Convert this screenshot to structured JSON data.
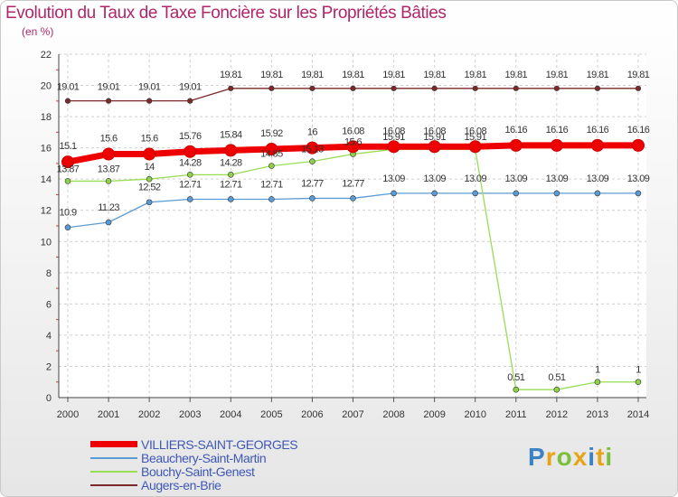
{
  "title": "Evolution du Taux de Taxe Foncière sur les Propriétés Bâties",
  "unit": "(en %)",
  "brand": "Proxiti",
  "chart_data": {
    "type": "line",
    "title": "Evolution du Taux de Taxe Foncière sur les Propriétés Bâties",
    "ylabel": "(en %)",
    "xlabel": "",
    "ylim": [
      0,
      22
    ],
    "yticks": [
      0,
      2,
      4,
      6,
      8,
      10,
      12,
      14,
      16,
      18,
      20,
      22
    ],
    "grid": true,
    "legend_position": "bottom-left",
    "categories": [
      "2000",
      "2001",
      "2002",
      "2003",
      "2004",
      "2005",
      "2006",
      "2007",
      "2008",
      "2009",
      "2010",
      "2011",
      "2012",
      "2013",
      "2014"
    ],
    "series": [
      {
        "name": "VILLIERS-SAINT-GEORGES",
        "color": "#ee0000",
        "values": [
          15.1,
          15.6,
          15.6,
          15.76,
          15.84,
          15.92,
          16,
          16.08,
          16.08,
          16.08,
          16.08,
          16.16,
          16.16,
          16.16,
          16.16
        ],
        "labels": [
          "15.1",
          "15.6",
          "15.6",
          "15.76",
          "15.84",
          "15.92",
          "16",
          "16.08",
          "16.08",
          "16.08",
          "16.08",
          "16.16",
          "16.16",
          "16.16",
          "16.16"
        ]
      },
      {
        "name": "Beauchery-Saint-Martin",
        "color": "#5b9bd5",
        "values": [
          10.9,
          11.23,
          12.52,
          12.71,
          12.71,
          12.71,
          12.77,
          12.77,
          13.09,
          13.09,
          13.09,
          13.09,
          13.09,
          13.09,
          13.09
        ],
        "labels": [
          "10.9",
          "11.23",
          "12.52",
          "12.71",
          "12.71",
          "12.71",
          "12.77",
          "12.77",
          "13.09",
          "13.09",
          "13.09",
          "13.09",
          "13.09",
          "13.09",
          "13.09"
        ]
      },
      {
        "name": "Bouchy-Saint-Genest",
        "color": "#99dd55",
        "values": [
          13.87,
          13.87,
          14,
          14.28,
          14.28,
          14.85,
          15.13,
          15.6,
          15.91,
          15.91,
          15.91,
          0.51,
          0.51,
          1,
          1
        ],
        "labels": [
          "13.87",
          "13.87",
          "14",
          "14.28",
          "14.28",
          "14.85",
          "15.13",
          "15.6",
          "15.91",
          "15.91",
          "15.91",
          "0.51",
          "0.51",
          "1",
          "1"
        ]
      },
      {
        "name": "Augers-en-Brie",
        "color": "#7a2a2a",
        "values": [
          19.01,
          19.01,
          19.01,
          19.01,
          19.81,
          19.81,
          19.81,
          19.81,
          19.81,
          19.81,
          19.81,
          19.81,
          19.81,
          19.81,
          19.81
        ],
        "labels": [
          "19.01",
          "19.01",
          "19.01",
          "19.01",
          "19.81",
          "19.81",
          "19.81",
          "19.81",
          "19.81",
          "19.81",
          "19.81",
          "19.81",
          "19.81",
          "19.81",
          "19.81"
        ]
      }
    ]
  },
  "legend": [
    {
      "label": "VILLIERS-SAINT-GEORGES",
      "color": "#ee0000"
    },
    {
      "label": "Beauchery-Saint-Martin",
      "color": "#5b9bd5"
    },
    {
      "label": "Bouchy-Saint-Genest",
      "color": "#99dd55"
    },
    {
      "label": "Augers-en-Brie",
      "color": "#7a2a2a"
    }
  ]
}
